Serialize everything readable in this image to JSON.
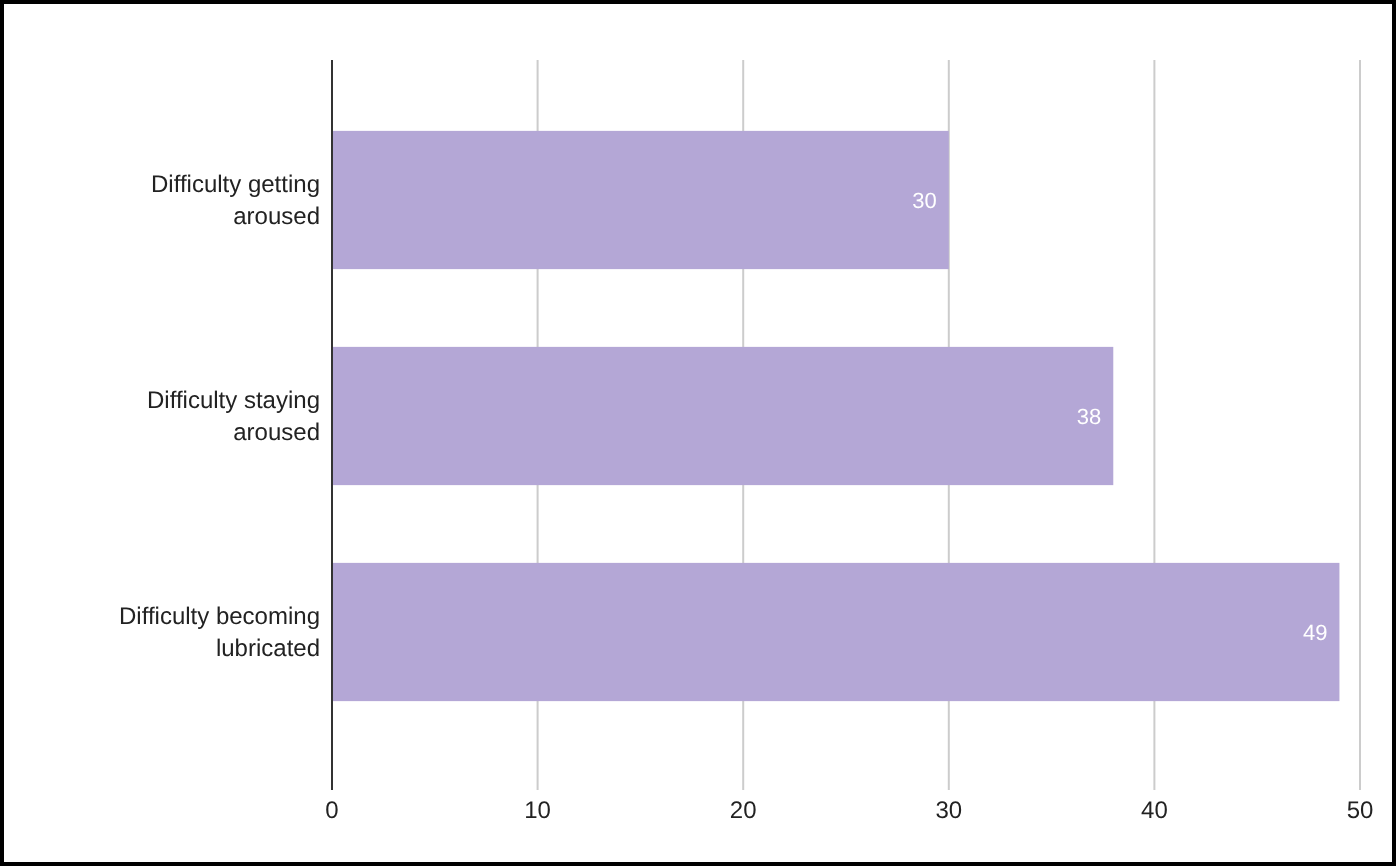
{
  "chart_data": {
    "type": "bar",
    "orientation": "horizontal",
    "categories": [
      "Difficulty getting aroused",
      "Difficulty staying aroused",
      "Difficulty becoming lubricated"
    ],
    "values": [
      30,
      38,
      49
    ],
    "color": "#b4a7d6",
    "xlim": [
      0,
      50
    ],
    "xticks": [
      0,
      10,
      20,
      30,
      40,
      50
    ],
    "grid": "x",
    "data_labels": true
  }
}
